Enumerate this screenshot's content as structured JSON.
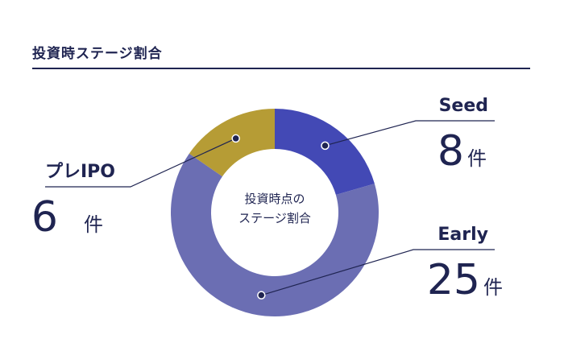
{
  "title": "投資時ステージ割合",
  "chart_data": {
    "type": "pie",
    "title": "投資時ステージ割合",
    "center_label": [
      "投資時点の",
      "ステージ割合"
    ],
    "unit": "件",
    "categories": [
      "Seed",
      "Early",
      "プレIPO"
    ],
    "values": [
      8,
      25,
      6
    ],
    "colors": [
      "#4349b5",
      "#6b6eb3",
      "#b69c35"
    ],
    "legend": "callouts"
  }
}
